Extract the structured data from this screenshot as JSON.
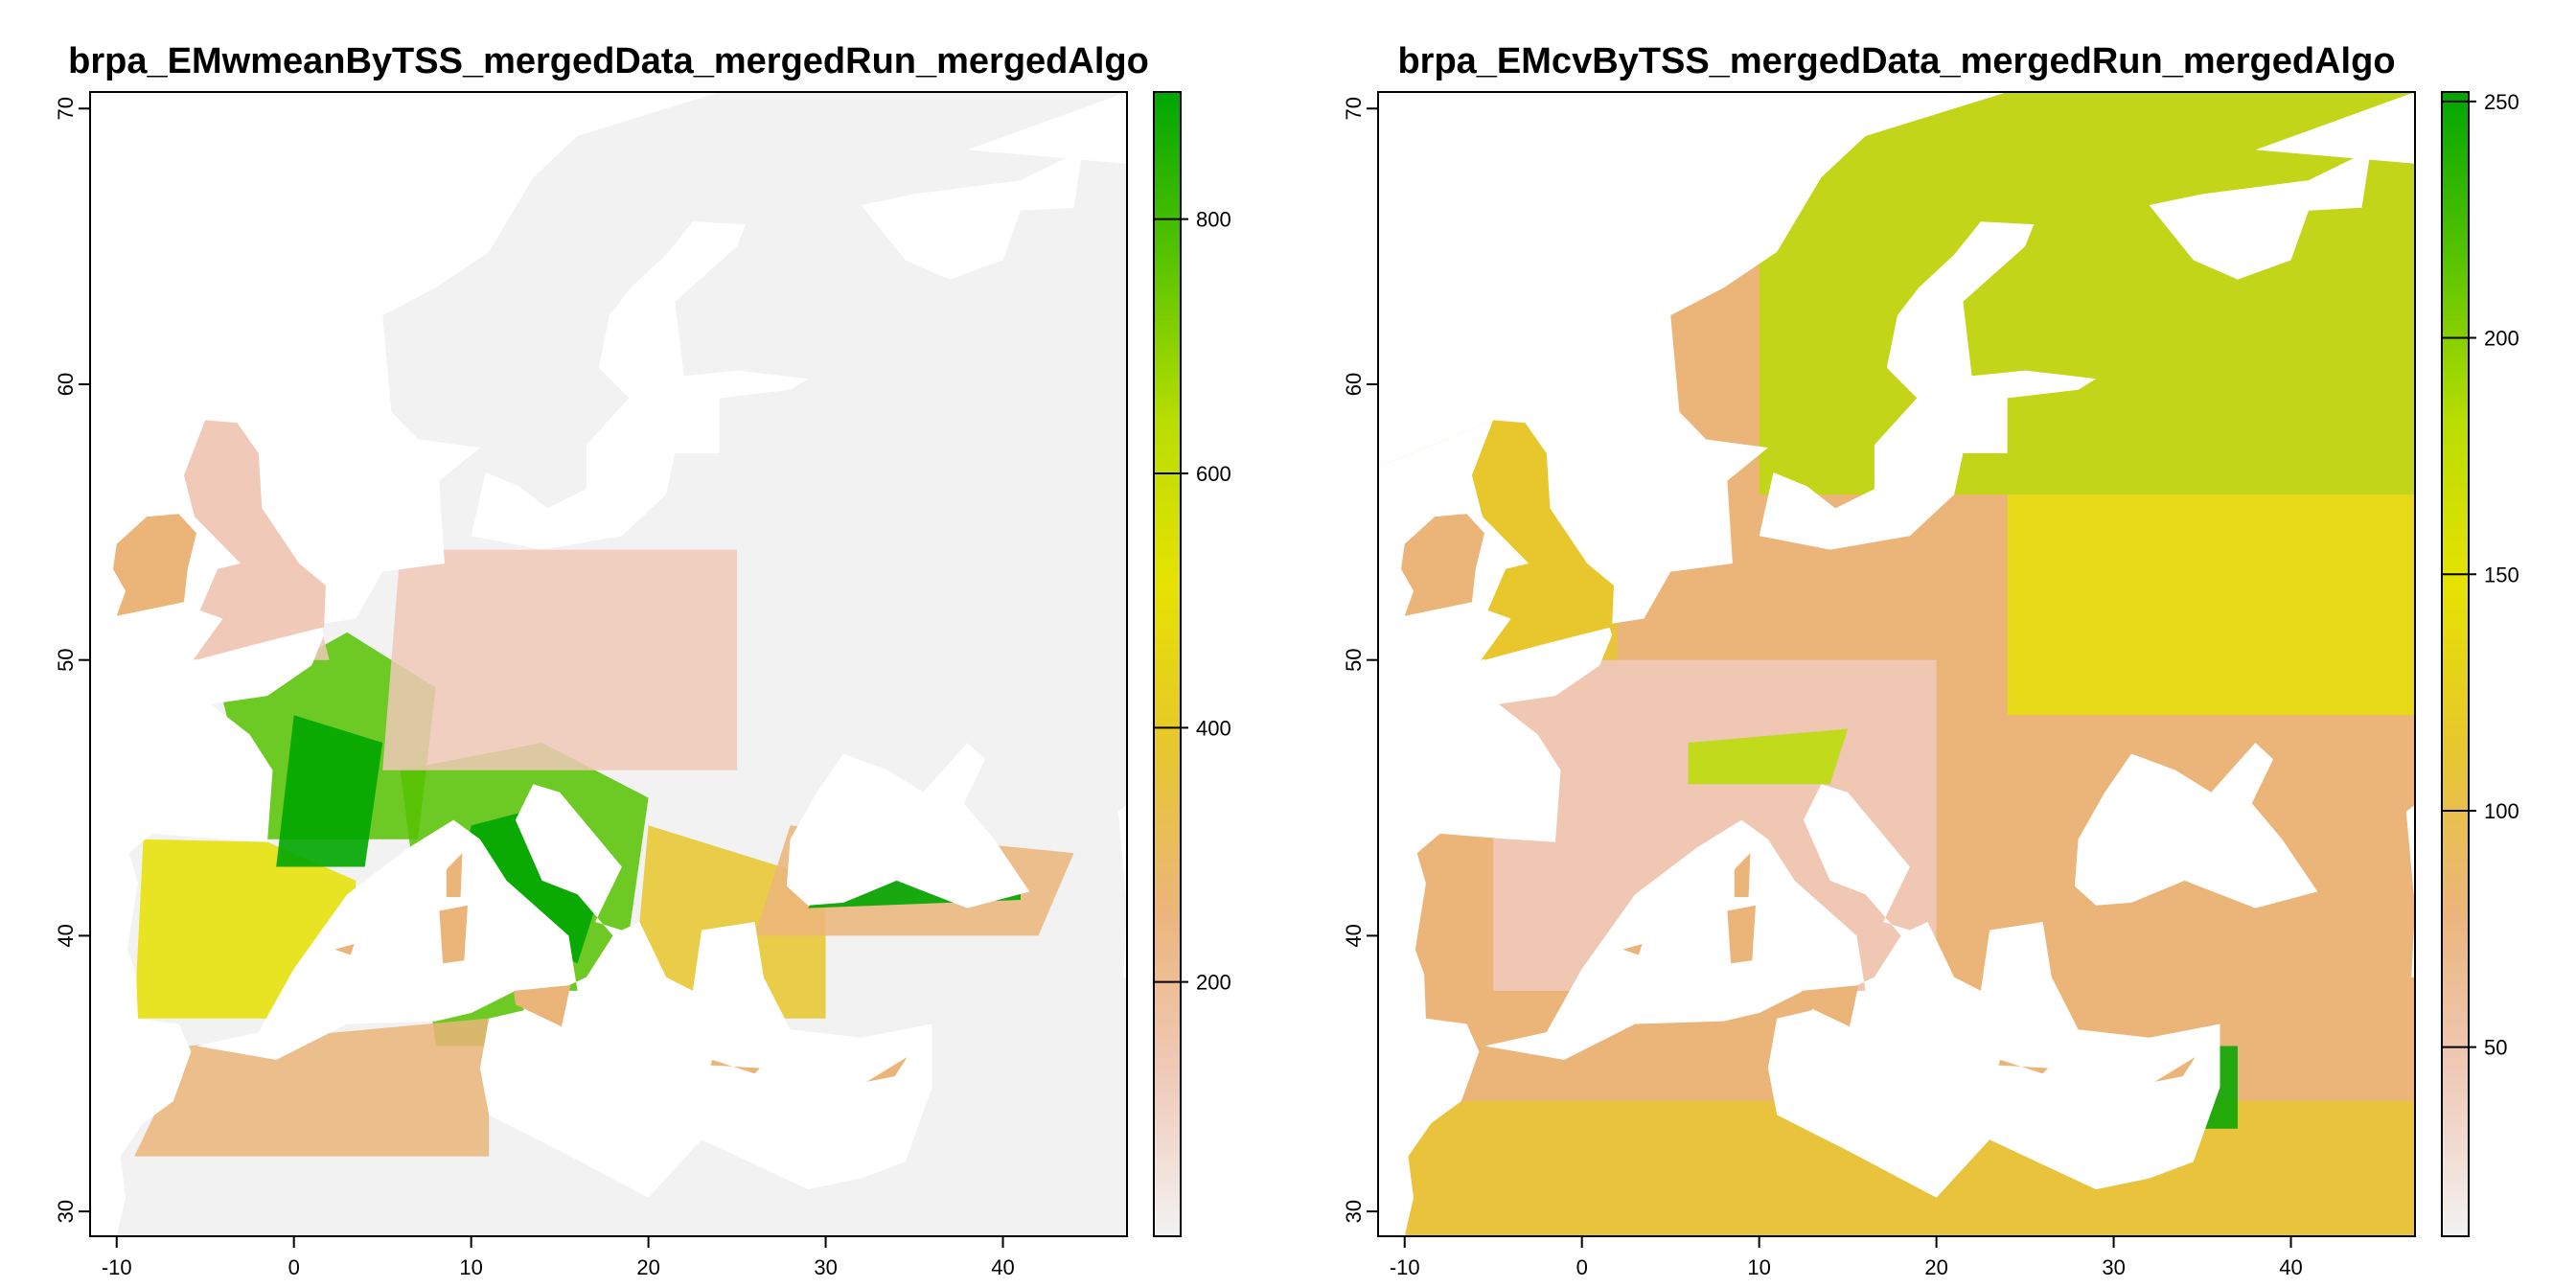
{
  "maps": [
    {
      "title": "brpa_EMwmeanByTSS_mergedData_mergedRun_mergedAlgo",
      "x_ticks": [
        -10,
        0,
        10,
        20,
        30,
        40
      ],
      "y_ticks": [
        30,
        40,
        50,
        60,
        70
      ],
      "legend_ticks": [
        200,
        400,
        600,
        800
      ],
      "legend_range": [
        0,
        900
      ]
    },
    {
      "title": "brpa_EMcvByTSS_mergedData_mergedRun_mergedAlgo",
      "x_ticks": [
        -10,
        0,
        10,
        20,
        30,
        40
      ],
      "y_ticks": [
        30,
        40,
        50,
        60,
        70
      ],
      "legend_ticks": [
        50,
        100,
        150,
        200,
        250
      ],
      "legend_range": [
        10,
        252
      ]
    }
  ],
  "extent": {
    "lon": [
      -11.5,
      47
    ],
    "lat": [
      29.1,
      70.6
    ]
  },
  "colors": {
    "ramp": [
      "#f2f2f2",
      "#f0c9b8",
      "#ebb57a",
      "#e7c72c",
      "#e6e200",
      "#b8dd00",
      "#56c300",
      "#00a600"
    ],
    "sea": "#ffffff"
  }
}
